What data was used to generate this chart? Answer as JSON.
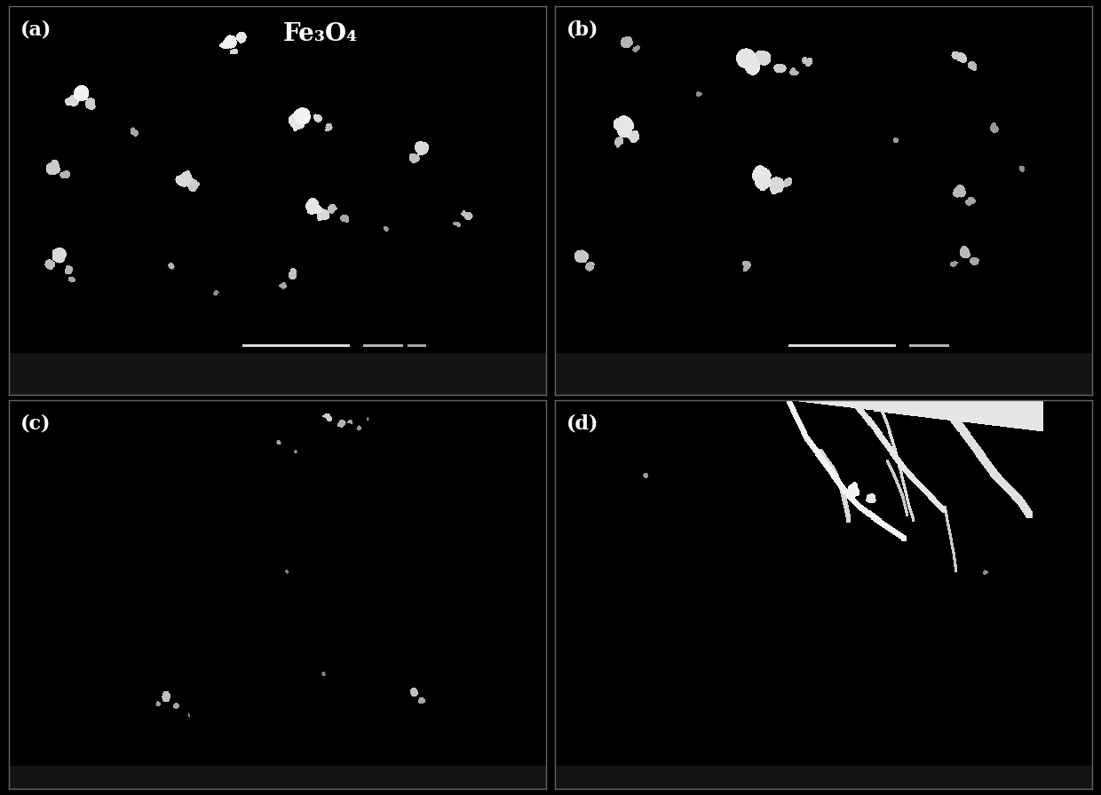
{
  "title": "Fe₃O₄",
  "panel_labels": [
    "(a)",
    "(b)",
    "(c)",
    "(d)"
  ],
  "background_color": "#000000",
  "text_color": "#ffffff",
  "label_fontsize": 16,
  "title_fontsize": 20,
  "fig_width": 12.4,
  "fig_height": 8.96,
  "border_color": "#888888",
  "info_bar_height": 18,
  "info_bar_intensity": 0.12
}
